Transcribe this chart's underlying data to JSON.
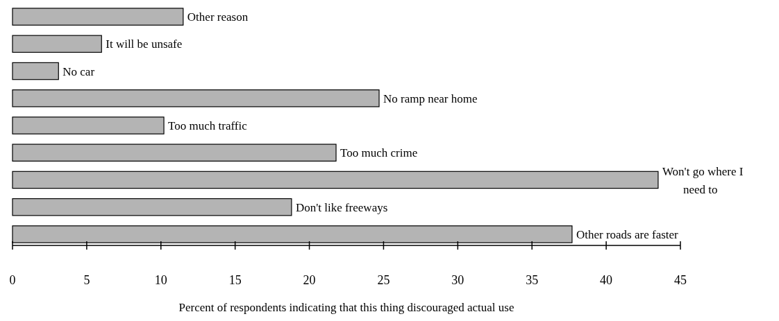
{
  "chart_data": {
    "type": "bar",
    "orientation": "horizontal",
    "categories": [
      "Other reason",
      "It will be unsafe",
      "No car",
      "No ramp near home",
      "Too much traffic",
      "Too much crime",
      "Won't go where I need to",
      "Don't like freeways",
      "Other roads are faster"
    ],
    "values": [
      11.5,
      6.0,
      3.1,
      24.7,
      10.2,
      21.8,
      43.5,
      18.8,
      37.7
    ],
    "color": "#b4b4b4",
    "xlim": [
      0,
      45
    ],
    "xticks": [
      0,
      5,
      10,
      15,
      20,
      25,
      30,
      35,
      40,
      45
    ],
    "xlabel": "Percent of respondents indicating that this thing discouraged actual use",
    "grid": false
  }
}
